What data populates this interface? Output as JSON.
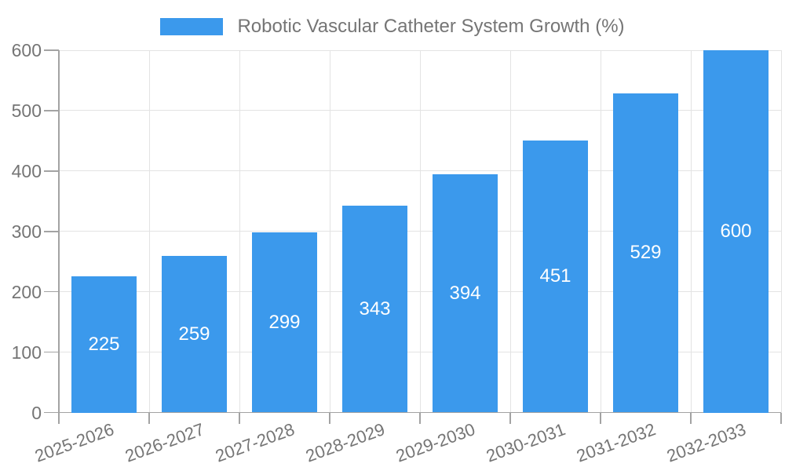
{
  "legend": {
    "series_label": "Robotic Vascular Catheter System Growth (%)"
  },
  "chart_data": {
    "type": "bar",
    "title": "Robotic Vascular Catheter System Growth (%)",
    "categories": [
      "2025-2026",
      "2026-2027",
      "2027-2028",
      "2028-2029",
      "2029-2030",
      "2030-2031",
      "2031-2032",
      "2032-2033"
    ],
    "values": [
      225,
      259,
      299,
      343,
      394,
      451,
      529,
      600
    ],
    "xlabel": "",
    "ylabel": "",
    "ylim": [
      0,
      600
    ],
    "y_ticks": [
      0,
      100,
      200,
      300,
      400,
      500,
      600
    ],
    "grid": true,
    "bar_value_labels_shown": true,
    "legend_position": "top-center",
    "colors": {
      "bar": "#3B99EC",
      "bar_label": "#FFFFFF",
      "axis": "#A3A3A3",
      "gridline": "#E3E3E3",
      "text": "#757575"
    }
  }
}
